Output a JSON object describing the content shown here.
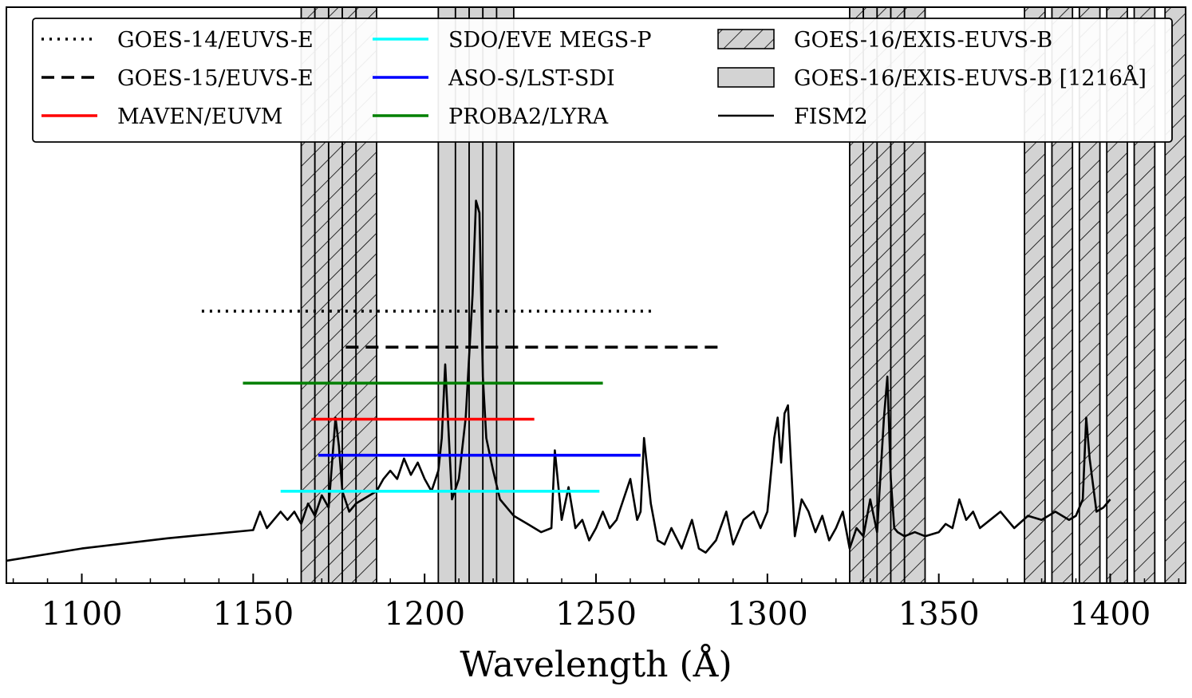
{
  "chart_data": {
    "type": "line",
    "xlabel": "Wavelength (Å)",
    "ylabel": "",
    "xlim": [
      1078,
      1422
    ],
    "ylim": [
      0,
      1
    ],
    "x_ticks": [
      1100,
      1150,
      1200,
      1250,
      1300,
      1350,
      1400
    ],
    "y_ticks_shown": false,
    "grid": false,
    "legend_position": "top",
    "series": [
      {
        "name": "GOES-14/EUVS-E",
        "color": "#000000",
        "style": "dotted",
        "x": [
          1135,
          1267
        ],
        "y": 0.61
      },
      {
        "name": "GOES-15/EUVS-E",
        "color": "#000000",
        "style": "dashed",
        "x": [
          1177,
          1286
        ],
        "y": 0.522
      },
      {
        "name": "MAVEN/EUVM",
        "color": "#ff0000",
        "style": "solid",
        "x": [
          1167,
          1232
        ],
        "y": 0.346
      },
      {
        "name": "SDO/EVE MEGS-P",
        "color": "#00ffff",
        "style": "solid",
        "x": [
          1158,
          1251
        ],
        "y": 0.17
      },
      {
        "name": "ASO-S/LST-SDI",
        "color": "#0000ff",
        "style": "solid",
        "x": [
          1169,
          1263
        ],
        "y": 0.258
      },
      {
        "name": "PROBA2/LYRA",
        "color": "#008000",
        "style": "solid",
        "x": [
          1147,
          1252
        ],
        "y": 0.434
      }
    ],
    "bands": [
      {
        "name": "GOES-16/EXIS-EUVS-B",
        "fill": "hatched",
        "ranges": [
          [
            1164,
            1168
          ],
          [
            1168,
            1172
          ],
          [
            1172,
            1176
          ],
          [
            1176,
            1180
          ],
          [
            1180,
            1186
          ],
          [
            1324,
            1328
          ],
          [
            1328,
            1332
          ],
          [
            1332,
            1336
          ],
          [
            1336,
            1340
          ],
          [
            1340,
            1346
          ],
          [
            1375,
            1381
          ],
          [
            1383,
            1389
          ],
          [
            1391,
            1397
          ],
          [
            1399,
            1405
          ],
          [
            1407,
            1413
          ],
          [
            1416,
            1422
          ]
        ]
      },
      {
        "name": "GOES-16/EXIS-EUVS-B [1216Å]",
        "fill": "gray",
        "ranges": [
          [
            1204,
            1209
          ],
          [
            1209,
            1213
          ],
          [
            1213,
            1217
          ],
          [
            1217,
            1221
          ],
          [
            1221,
            1226
          ]
        ]
      }
    ],
    "fism2": {
      "name": "FISM2",
      "color": "#000000",
      "x": [
        1078,
        1100,
        1125,
        1150,
        1152,
        1154,
        1156,
        1158,
        1160,
        1162,
        1164,
        1166,
        1168,
        1170,
        1172,
        1174,
        1175,
        1176,
        1178,
        1180,
        1182,
        1184,
        1186,
        1188,
        1190,
        1192,
        1194,
        1196,
        1198,
        1200,
        1202,
        1204,
        1205,
        1206,
        1208,
        1210,
        1212,
        1214,
        1215,
        1216,
        1217,
        1218,
        1220,
        1222,
        1224,
        1226,
        1230,
        1234,
        1237,
        1238,
        1240,
        1242,
        1244,
        1246,
        1248,
        1250,
        1252,
        1254,
        1256,
        1258,
        1260,
        1262,
        1263,
        1264,
        1266,
        1268,
        1270,
        1272,
        1275,
        1278,
        1280,
        1282,
        1285,
        1288,
        1290,
        1293,
        1296,
        1298,
        1300,
        1302,
        1303,
        1304,
        1305,
        1306,
        1308,
        1310,
        1312,
        1314,
        1316,
        1318,
        1320,
        1322,
        1324,
        1326,
        1328,
        1330,
        1332,
        1334,
        1335,
        1336,
        1337,
        1338,
        1340,
        1343,
        1346,
        1350,
        1352,
        1354,
        1356,
        1358,
        1360,
        1362,
        1365,
        1368,
        1372,
        1376,
        1380,
        1384,
        1388,
        1390,
        1392,
        1393,
        1394,
        1396,
        1398,
        1400
      ],
      "y": [
        0.0,
        0.03,
        0.055,
        0.075,
        0.12,
        0.08,
        0.1,
        0.12,
        0.1,
        0.12,
        0.09,
        0.14,
        0.11,
        0.16,
        0.13,
        0.35,
        0.28,
        0.17,
        0.12,
        0.14,
        0.15,
        0.16,
        0.17,
        0.2,
        0.22,
        0.2,
        0.25,
        0.21,
        0.24,
        0.2,
        0.17,
        0.22,
        0.3,
        0.48,
        0.15,
        0.2,
        0.35,
        0.65,
        0.88,
        0.85,
        0.45,
        0.3,
        0.22,
        0.15,
        0.13,
        0.11,
        0.09,
        0.07,
        0.08,
        0.27,
        0.1,
        0.18,
        0.08,
        0.1,
        0.05,
        0.08,
        0.12,
        0.08,
        0.1,
        0.15,
        0.2,
        0.1,
        0.12,
        0.3,
        0.14,
        0.05,
        0.04,
        0.08,
        0.03,
        0.1,
        0.03,
        0.02,
        0.05,
        0.12,
        0.04,
        0.1,
        0.12,
        0.08,
        0.12,
        0.3,
        0.35,
        0.24,
        0.36,
        0.38,
        0.06,
        0.15,
        0.12,
        0.07,
        0.11,
        0.05,
        0.08,
        0.12,
        0.03,
        0.08,
        0.06,
        0.15,
        0.07,
        0.35,
        0.45,
        0.2,
        0.08,
        0.07,
        0.06,
        0.07,
        0.06,
        0.07,
        0.09,
        0.08,
        0.15,
        0.1,
        0.12,
        0.08,
        0.1,
        0.12,
        0.08,
        0.11,
        0.1,
        0.12,
        0.1,
        0.11,
        0.15,
        0.35,
        0.25,
        0.12,
        0.13,
        0.15
      ]
    }
  }
}
